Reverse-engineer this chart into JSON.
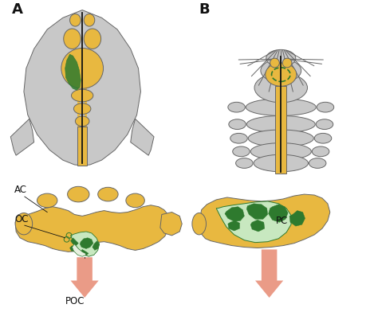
{
  "background_color": "#ffffff",
  "yellow": "#E8B840",
  "gray_body": "#C8C8C8",
  "green_dark": "#2E7A2E",
  "green_pale": "#C8E8C0",
  "black": "#111111",
  "arrow_color": "#E8907A",
  "outline_color": "#666666",
  "label_A": "A",
  "label_B": "B",
  "label_AC": "AC",
  "label_OC": "OC",
  "label_POC": "POC",
  "label_PC": "PC"
}
